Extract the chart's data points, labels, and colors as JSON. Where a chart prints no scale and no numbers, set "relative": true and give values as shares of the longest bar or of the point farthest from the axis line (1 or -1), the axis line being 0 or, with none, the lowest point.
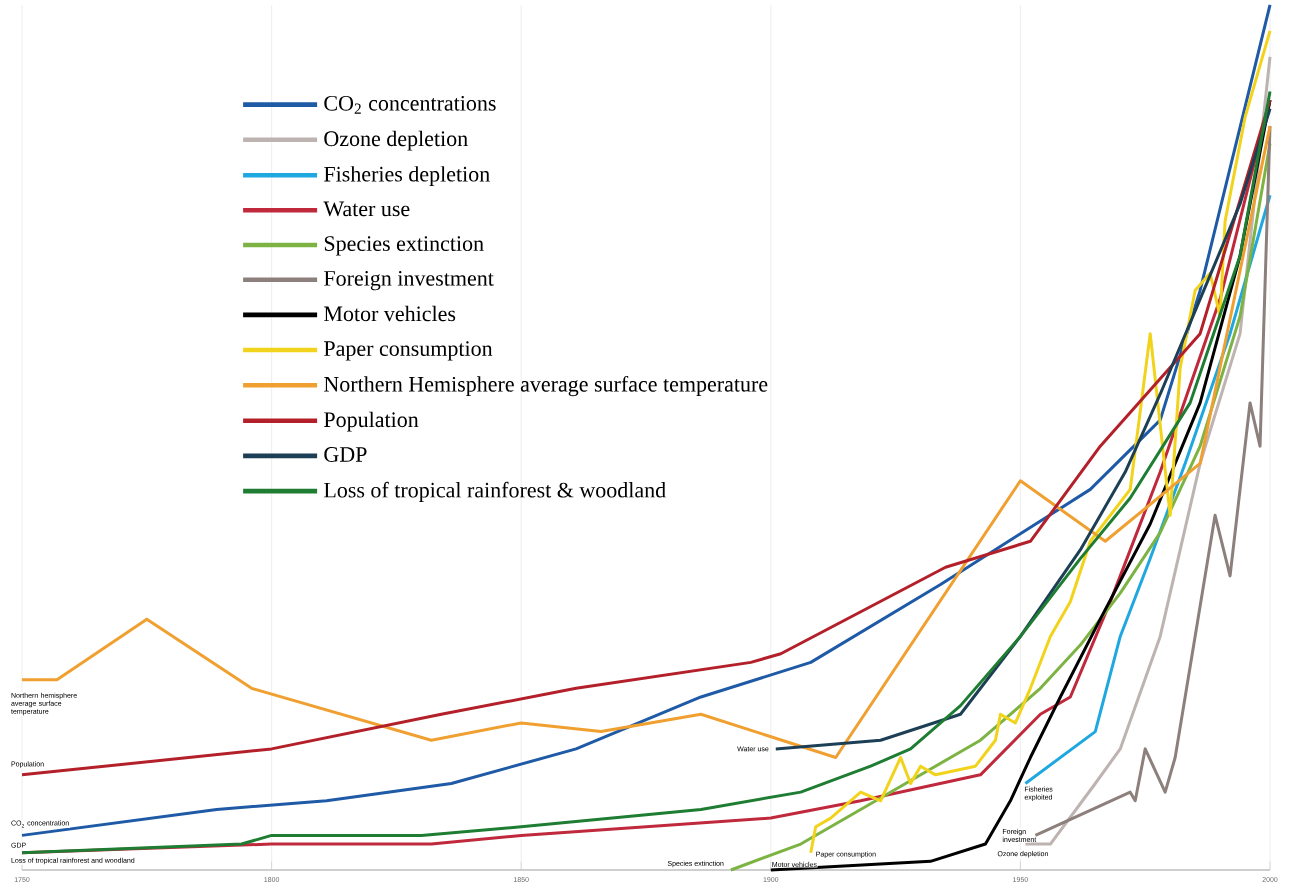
{
  "chart_data": {
    "type": "line",
    "relative": true,
    "xlim": [
      1750,
      2000
    ],
    "xticks": [
      1750,
      1800,
      1850,
      1900,
      1950,
      2000
    ],
    "grid": "x",
    "legend": "top left",
    "series": [
      {
        "name": "CO$_{2}$ concentrations",
        "color": "#1f5aa6",
        "x": [
          1750,
          1789,
          1811,
          1836,
          1861,
          1886,
          1908,
          1934,
          1964,
          1978,
          1986,
          2000
        ],
        "values": [
          0.04,
          0.07,
          0.08,
          0.1,
          0.14,
          0.2,
          0.24,
          0.33,
          0.44,
          0.52,
          0.67,
          1.0
        ]
      },
      {
        "name": "Ozone depletion",
        "color": "#bdb3b0",
        "x": [
          1951,
          1956,
          1965,
          1970,
          1978,
          1986,
          1994,
          2000
        ],
        "values": [
          0.03,
          0.03,
          0.1,
          0.14,
          0.27,
          0.47,
          0.62,
          0.94
        ]
      },
      {
        "name": "Fisheries depletion",
        "color": "#1fa8e0",
        "x": [
          1951,
          1965,
          1970,
          1976,
          1983,
          1992,
          2000
        ],
        "values": [
          0.1,
          0.16,
          0.27,
          0.36,
          0.47,
          0.62,
          0.78
        ]
      },
      {
        "name": "Water use",
        "color": "#c0283c",
        "x": [
          1750,
          1800,
          1832,
          1850,
          1900,
          1918,
          1942,
          1954,
          1960,
          1968,
          1978,
          1990,
          2000
        ],
        "values": [
          0.02,
          0.03,
          0.03,
          0.04,
          0.06,
          0.08,
          0.11,
          0.18,
          0.2,
          0.31,
          0.46,
          0.66,
          0.89
        ]
      },
      {
        "name": "Species extinction",
        "color": "#7cb342",
        "x": [
          1892,
          1906,
          1918,
          1930,
          1942,
          1954,
          1962,
          1970,
          1978,
          1986,
          1994,
          2000
        ],
        "values": [
          0.0,
          0.03,
          0.07,
          0.11,
          0.15,
          0.21,
          0.26,
          0.32,
          0.39,
          0.49,
          0.64,
          0.84
        ]
      },
      {
        "name": "Foreign investment",
        "color": "#8c7f7c",
        "x": [
          1953,
          1972,
          1973,
          1975,
          1979,
          1981,
          1983,
          1989,
          1992,
          1996,
          1998,
          2000
        ],
        "values": [
          0.04,
          0.09,
          0.08,
          0.14,
          0.09,
          0.13,
          0.2,
          0.41,
          0.34,
          0.54,
          0.49,
          0.86
        ]
      },
      {
        "name": "Motor vehicles",
        "color": "#000000",
        "x": [
          1900,
          1932,
          1943,
          1948,
          1952,
          1958,
          1966,
          1976,
          1986,
          1994,
          2000
        ],
        "values": [
          0.0,
          0.01,
          0.03,
          0.08,
          0.13,
          0.2,
          0.29,
          0.4,
          0.54,
          0.71,
          0.89
        ]
      },
      {
        "name": "Paper consumption",
        "color": "#f2d31b",
        "x": [
          1908,
          1909,
          1912,
          1918,
          1922,
          1926,
          1928,
          1930,
          1933,
          1941,
          1945,
          1946,
          1949,
          1952,
          1956,
          1960,
          1964,
          1972,
          1976,
          1980,
          1982,
          1985,
          1988,
          1990,
          1991,
          1995,
          2000
        ],
        "values": [
          0.02,
          0.05,
          0.06,
          0.09,
          0.08,
          0.13,
          0.1,
          0.12,
          0.11,
          0.12,
          0.15,
          0.18,
          0.17,
          0.21,
          0.27,
          0.31,
          0.38,
          0.44,
          0.62,
          0.41,
          0.58,
          0.67,
          0.69,
          0.64,
          0.75,
          0.87,
          0.97
        ]
      },
      {
        "name": "Northern Hemisphere average surface temperature",
        "color": "#f0a030",
        "x": [
          1750,
          1757,
          1775,
          1796,
          1832,
          1850,
          1866,
          1886,
          1913,
          1950,
          1967,
          1986,
          2000
        ],
        "values": [
          0.22,
          0.22,
          0.29,
          0.21,
          0.15,
          0.17,
          0.16,
          0.18,
          0.13,
          0.45,
          0.38,
          0.47,
          0.86
        ]
      },
      {
        "name": "Population",
        "color": "#b3202a",
        "x": [
          1750,
          1800,
          1834,
          1861,
          1896,
          1902,
          1935,
          1952,
          1966,
          1986,
          2000
        ],
        "values": [
          0.11,
          0.14,
          0.18,
          0.21,
          0.24,
          0.25,
          0.35,
          0.38,
          0.49,
          0.62,
          0.89
        ]
      },
      {
        "name": "GDP",
        "color": "#1d3f55",
        "x": [
          1901,
          1922,
          1938,
          1950,
          1962,
          1971,
          1978,
          1986,
          1994,
          2000
        ],
        "values": [
          0.14,
          0.15,
          0.18,
          0.27,
          0.37,
          0.46,
          0.55,
          0.66,
          0.77,
          0.88
        ]
      },
      {
        "name": "Loss of tropical rainforest & woodland",
        "color": "#1e7d32",
        "x": [
          1750,
          1794,
          1800,
          1830,
          1850,
          1886,
          1906,
          1920,
          1928,
          1938,
          1950,
          1962,
          1972,
          1984,
          1994,
          2000
        ],
        "values": [
          0.02,
          0.03,
          0.04,
          0.04,
          0.05,
          0.07,
          0.09,
          0.12,
          0.14,
          0.19,
          0.27,
          0.36,
          0.43,
          0.54,
          0.71,
          0.9
        ]
      }
    ],
    "annotations": [
      {
        "text": "Northern hemisphere average surface temperature",
        "x": 1750,
        "y": 0.22
      },
      {
        "text": "Population",
        "x": 1750,
        "y": 0.11
      },
      {
        "text": "CO$_{2}$ concentration",
        "x": 1750,
        "y": 0.04
      },
      {
        "text": "GDP",
        "x": 1750,
        "y": 0.02
      },
      {
        "text": "Loss of tropical rainforest and woodland",
        "x": 1750,
        "y": 0.02
      },
      {
        "text": "Water use",
        "x": 1901,
        "y": 0.14
      },
      {
        "text": "Species extinction",
        "x": 1892,
        "y": 0.0
      },
      {
        "text": "Paper consumption",
        "x": 1908,
        "y": 0.02
      },
      {
        "text": "Motor vehicles",
        "x": 1900,
        "y": 0.0
      },
      {
        "text": "Fisheries exploited",
        "x": 1951,
        "y": 0.1
      },
      {
        "text": "Foreign investment",
        "x": 1953,
        "y": 0.04
      },
      {
        "text": "Ozone depletion",
        "x": 1951,
        "y": 0.03
      }
    ]
  }
}
